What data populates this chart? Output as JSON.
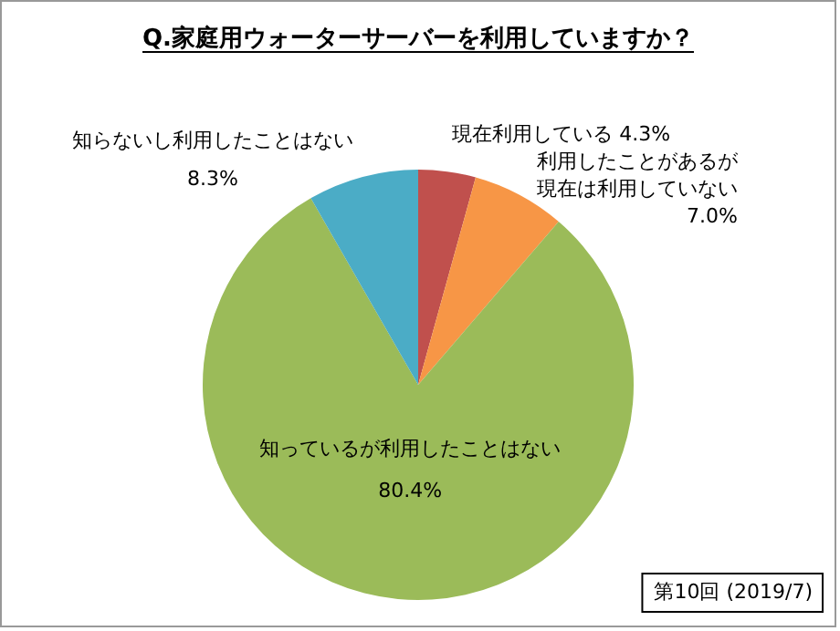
{
  "chart_data": {
    "type": "pie",
    "title": "Q.家庭用ウォーターサーバーを利用していますか？",
    "categories": [
      "現在利用している",
      "利用したことがあるが現在は利用していない",
      "知っているが利用したことはない",
      "知らないし利用したことはない"
    ],
    "values": [
      4.3,
      7.0,
      80.4,
      8.3
    ],
    "colors": [
      "#c0504d",
      "#f79646",
      "#9bbb59",
      "#4bacc6"
    ],
    "value_labels": [
      "4.3%",
      "7.0%",
      "80.4%",
      "8.3%"
    ],
    "annotations": [
      "第10回 (2019/7)"
    ],
    "legend": false
  }
}
